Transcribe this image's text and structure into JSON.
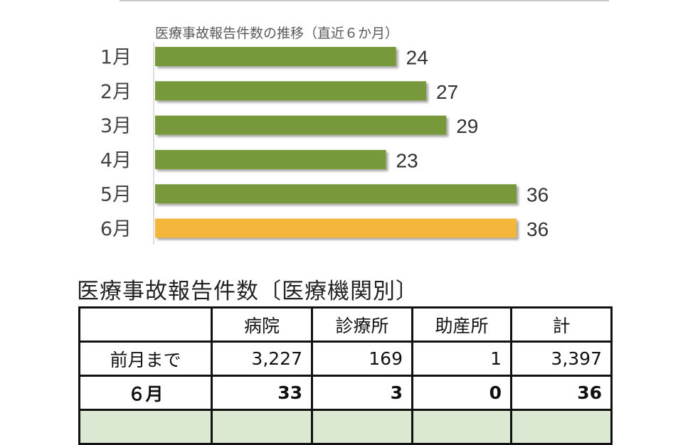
{
  "chart_data": {
    "type": "bar",
    "orientation": "horizontal",
    "title": "医療事故報告件数の推移（直近６か月）",
    "categories": [
      "1月",
      "2月",
      "3月",
      "4月",
      "5月",
      "6月"
    ],
    "values": [
      24,
      27,
      29,
      23,
      36,
      36
    ],
    "data_labels": [
      "24",
      "27",
      "29",
      "23",
      "36",
      "36"
    ],
    "xlim": [
      0,
      36
    ],
    "grid": false,
    "colors": {
      "default": "#77983a",
      "highlight": "#f4b73a"
    },
    "highlight_index": 5
  },
  "table": {
    "title": "医療事故報告件数〔医療機関別〕",
    "columns": [
      "",
      "病院",
      "診療所",
      "助産所",
      "計"
    ],
    "rows": [
      {
        "label": "前月まで",
        "values": [
          "3,227",
          "169",
          "1",
          "3,397"
        ]
      },
      {
        "label": "６月",
        "values": [
          "33",
          "3",
          "0",
          "36"
        ]
      }
    ]
  }
}
